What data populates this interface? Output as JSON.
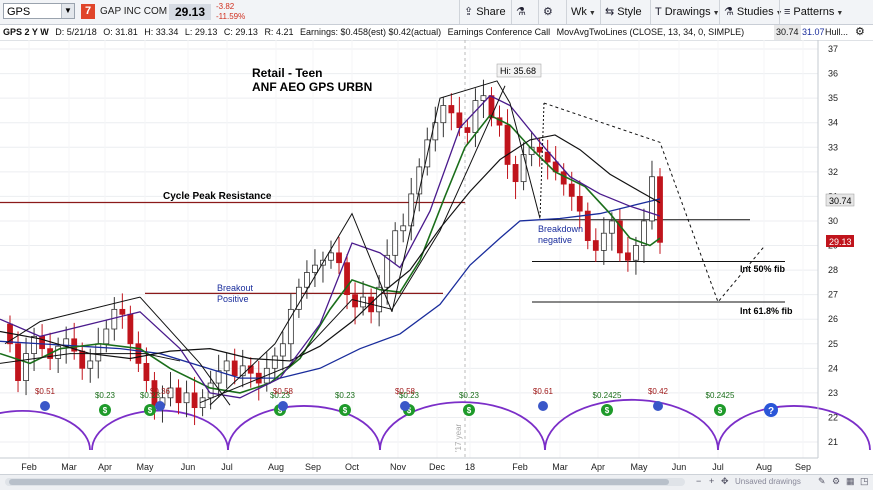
{
  "toolbar": {
    "symbol": "GPS",
    "badge": "7",
    "company": "GAP INC COM",
    "last": "29.13",
    "change": "-3.82",
    "change_pct": "-11.59%",
    "share": "Share",
    "period": "Wk",
    "style": "Style",
    "drawings": "Drawings",
    "studies": "Studies",
    "patterns": "Patterns"
  },
  "infobar": {
    "desc": "GPS 2 Y W",
    "date": "D: 5/21/18",
    "open": "O: 31.81",
    "high": "H: 33.34",
    "low": "L: 29.13",
    "close": "C: 29.13",
    "range": "R: 4.21",
    "earnings": "Earnings: $0.458(est) $0.42(actual)",
    "conf": "Earnings Conference Call",
    "study": "MovAvgTwoLines (CLOSE, 13, 34, 0, SIMPLE)",
    "ma1": "30.74",
    "ma2": "31.07",
    "hull": "Hull..."
  },
  "annotations": {
    "title1": "Retail - Teen",
    "title2": "ANF AEO GPS URBN",
    "cycle_peak": "Cycle Peak Resistance",
    "breakout1": "Breakout",
    "breakout2": "Positive",
    "hi": "Hi: 35.68",
    "breakdown1": "Breakdown",
    "breakdown2": "negative",
    "fib50": "Int 50% fib",
    "fib618": "Int 61.8% fib",
    "year_mark": "'17 year"
  },
  "price_tags": {
    "ma": "30.74",
    "last": "29.13"
  },
  "y_ticks": [
    "37",
    "36",
    "35",
    "34",
    "33",
    "32",
    "31",
    "30",
    "29",
    "28",
    "27",
    "26",
    "25",
    "24",
    "23",
    "22",
    "21"
  ],
  "x_ticks": [
    "Feb",
    "Mar",
    "Apr",
    "May",
    "Jun",
    "Jul",
    "Aug",
    "Sep",
    "Oct",
    "Nov",
    "Dec",
    "18",
    "Feb",
    "Mar",
    "Apr",
    "May",
    "Jun",
    "Jul",
    "Aug",
    "Sep"
  ],
  "dividends": [
    "$0.23",
    "$0.23",
    "$0.23",
    "$0.23",
    "$0.23",
    "$0.23",
    "$0.2425",
    "$0.2425"
  ],
  "earnings_marks": [
    "$0.51",
    "$0.36",
    "$0.58",
    "$0.58",
    "$0.61",
    "$0.42"
  ],
  "statusbar": {
    "unsaved": "Unsaved drawings"
  },
  "colors": {
    "up": "#ffffff",
    "down": "#c0141c",
    "ma13": "#1a6e1a",
    "ma34": "#111111",
    "ma_slow": "#1a2d9c",
    "hull": "#4a1a8c",
    "resistance": "#8b1a1a",
    "cycle": "#7b2ec8"
  },
  "chart_data": {
    "type": "candlestick",
    "ylim": [
      20.5,
      37.5
    ],
    "series_note": "weekly GPS",
    "hi": 35.68
  }
}
